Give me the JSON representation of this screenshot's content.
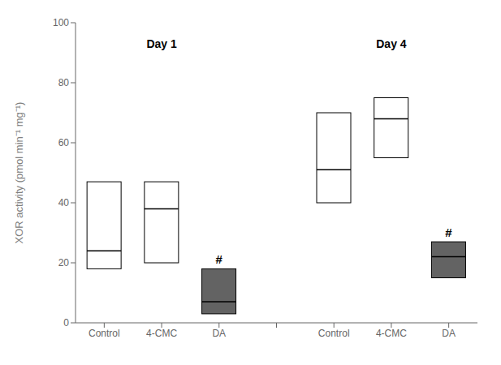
{
  "chart_data": {
    "type": "box",
    "ylabel": "XOR activity (pmol min⁻¹ mg⁻¹)",
    "categories": [
      "Control",
      "4-CMC",
      "DA",
      "Control",
      "4-CMC",
      "DA"
    ],
    "boxes": [
      {
        "q1": 18,
        "median": 24,
        "q3": 47,
        "group": "Day 1"
      },
      {
        "q1": 20,
        "median": 38,
        "q3": 47,
        "group": "Day 1"
      },
      {
        "q1": 3,
        "median": 7,
        "q3": 18,
        "group": "Day 1",
        "label": "#"
      },
      {
        "q1": 40,
        "median": 51,
        "q3": 70,
        "group": "Day 4"
      },
      {
        "q1": 55,
        "median": 68,
        "q3": 75,
        "group": "Day 4"
      },
      {
        "q1": 15,
        "median": 22,
        "q3": 27,
        "group": "Day 4",
        "label": "#"
      }
    ],
    "colors": [
      "white",
      "white",
      "#636363",
      "white",
      "white",
      "#636363"
    ],
    "ylim": [
      0,
      100
    ],
    "yticks": [
      0,
      20,
      40,
      60,
      80,
      100
    ],
    "grid": false,
    "annotations": [
      {
        "text": "Day 1",
        "y": 93
      },
      {
        "text": "Day 4",
        "y": 93
      }
    ]
  }
}
